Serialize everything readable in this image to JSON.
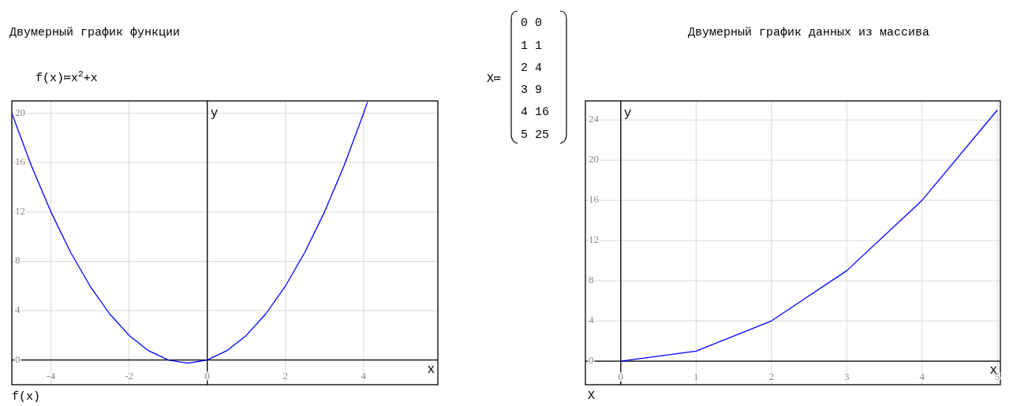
{
  "chart_data": [
    {
      "type": "line",
      "title": "Двумерный график функции",
      "xlabel": "x",
      "ylabel": "y",
      "annotations": [
        "f(x)≔x$^{2}$+x",
        "f(x)"
      ],
      "x": [
        -5,
        -4.5,
        -4,
        -3.5,
        -3,
        -2.5,
        -2,
        -1.5,
        -1,
        -0.5,
        0,
        0.5,
        1,
        1.5,
        2,
        2.5,
        3,
        3.5,
        4,
        4.1
      ],
      "series": [
        {
          "color": "#0000ff",
          "values": [
            20,
            15.75,
            12,
            8.75,
            6,
            3.75,
            2,
            0.75,
            0,
            -0.25,
            0,
            0.75,
            2,
            3.75,
            6,
            8.75,
            12,
            15.75,
            20,
            20.91
          ]
        }
      ],
      "xlim": [
        -5,
        5.9
      ],
      "ylim": [
        -2,
        21
      ],
      "xticks": [
        -4,
        -2,
        0,
        2,
        4
      ],
      "yticks": [
        0,
        4,
        8,
        12,
        16,
        20
      ],
      "grid": true,
      "marker": "none",
      "line_style": "solid"
    },
    {
      "type": "line",
      "title": "Двумерный график данных из массива",
      "xlabel": "x",
      "ylabel": "y",
      "annotations": [
        "X≔",
        "0 0",
        "1 1",
        "2 4",
        "3 9",
        "4 16",
        "5 25",
        "X"
      ],
      "x": [
        0,
        1,
        2,
        3,
        4,
        5
      ],
      "series": [
        {
          "color": "#0000ff",
          "values": [
            0,
            1,
            4,
            9,
            16,
            25
          ]
        }
      ],
      "xlim": [
        -0.47,
        5.04
      ],
      "ylim": [
        -2.35,
        25.9
      ],
      "xticks": [
        0,
        1,
        2,
        3,
        4,
        5
      ],
      "yticks": [
        0,
        4,
        8,
        12,
        16,
        20,
        24
      ],
      "grid": true,
      "marker": "none",
      "line_style": "solid"
    }
  ]
}
